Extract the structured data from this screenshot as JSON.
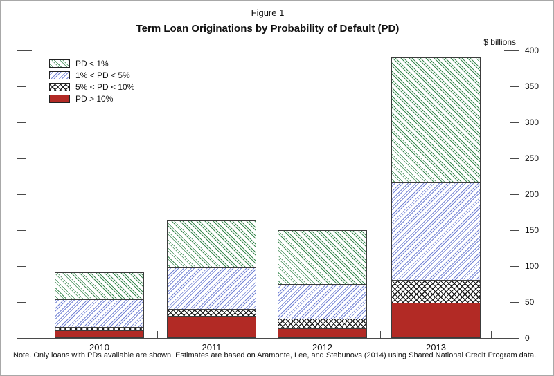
{
  "figure": {
    "label": "Figure 1",
    "title": "Term Loan Originations by Probability of Default (PD)",
    "unit_label": "$ billions",
    "note": "Note. Only loans with PDs available are shown. Estimates are based on Aramonte, Lee, and Stebunovs (2014) using Shared National Credit Program data."
  },
  "legend": {
    "items": [
      {
        "label": "PD < 1%",
        "pattern": "green-diagonal"
      },
      {
        "label": "1% < PD < 5%",
        "pattern": "blue-diagonal"
      },
      {
        "label": "5% < PD < 10%",
        "pattern": "black-crosshatch"
      },
      {
        "label": "PD > 10%",
        "pattern": "red-solid"
      }
    ]
  },
  "chart_data": {
    "type": "bar",
    "stacked": true,
    "title": "Term Loan Originations by Probability of Default (PD)",
    "xlabel": "",
    "ylabel": "$ billions",
    "categories": [
      "2010",
      "2011",
      "2012",
      "2013"
    ],
    "series": [
      {
        "name": "PD > 10%",
        "pattern": "red-solid",
        "color": "#b22a25",
        "values": [
          10,
          30,
          13,
          49
        ]
      },
      {
        "name": "5% < PD < 10%",
        "pattern": "black-crosshatch",
        "color": "#1c1c1c",
        "values": [
          5,
          10,
          13,
          31
        ]
      },
      {
        "name": "1% < PD < 5%",
        "pattern": "blue-diagonal",
        "color": "#7585d6",
        "values": [
          38,
          58,
          49,
          136
        ]
      },
      {
        "name": "PD < 1%",
        "pattern": "green-diagonal",
        "color": "#3f8b54",
        "values": [
          38,
          65,
          75,
          174
        ]
      }
    ],
    "totals": [
      91,
      163,
      150,
      390
    ],
    "ylim": [
      0,
      400
    ],
    "yticks": [
      0,
      50,
      100,
      150,
      200,
      250,
      300,
      350,
      400
    ],
    "grid": false,
    "legend_position": "top-left"
  },
  "colors": {
    "axis": "#4a4a4a",
    "text": "#111111",
    "pd_lt_1": "#3f8b54",
    "pd_1_5": "#7585d6",
    "pd_5_10": "#1c1c1c",
    "pd_gt_10": "#b22a25"
  }
}
